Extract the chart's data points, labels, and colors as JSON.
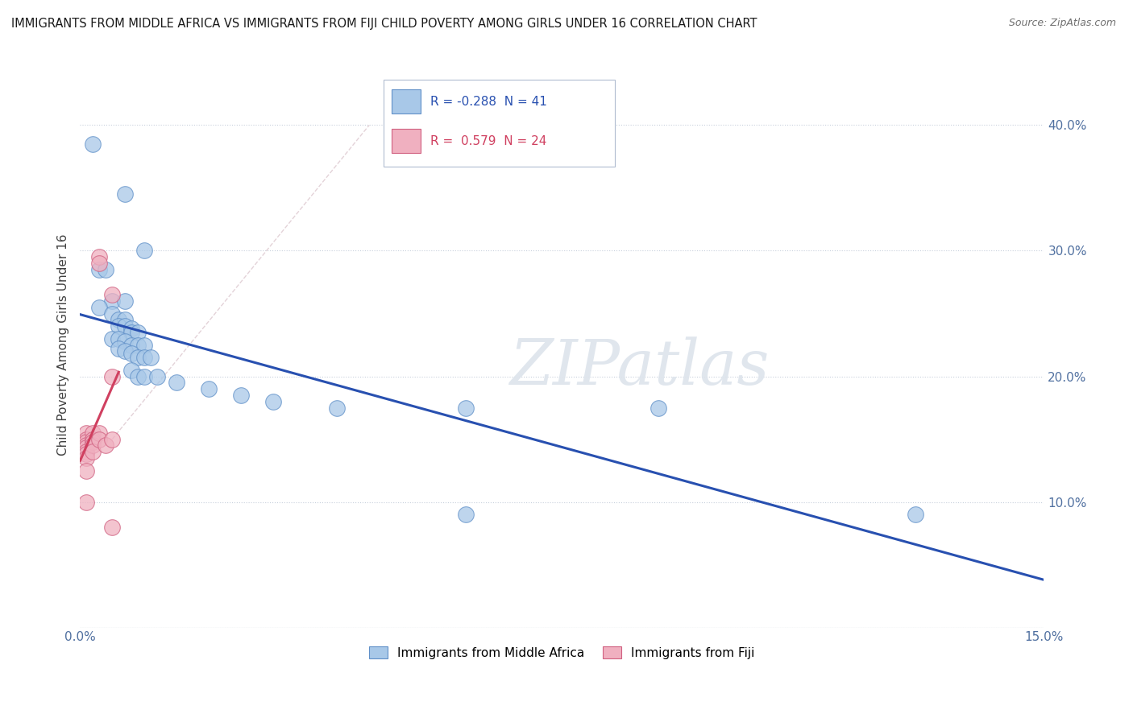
{
  "title": "IMMIGRANTS FROM MIDDLE AFRICA VS IMMIGRANTS FROM FIJI CHILD POVERTY AMONG GIRLS UNDER 16 CORRELATION CHART",
  "source": "Source: ZipAtlas.com",
  "ylabel": "Child Poverty Among Girls Under 16",
  "xlim": [
    0.0,
    0.15
  ],
  "ylim": [
    0.0,
    0.45
  ],
  "xticks": [
    0.0,
    0.025,
    0.05,
    0.075,
    0.1,
    0.125,
    0.15
  ],
  "xticklabels": [
    "0.0%",
    "",
    "",
    "",
    "",
    "",
    "15.0%"
  ],
  "yticks": [
    0.0,
    0.1,
    0.2,
    0.3,
    0.4
  ],
  "yticklabels_right": [
    "",
    "10.0%",
    "20.0%",
    "30.0%",
    "40.0%"
  ],
  "legend_blue_label": "Immigrants from Middle Africa",
  "legend_pink_label": "Immigrants from Fiji",
  "R_blue": "-0.288",
  "N_blue": "41",
  "R_pink": "0.579",
  "N_pink": "24",
  "blue_color": "#a8c8e8",
  "pink_color": "#f0b0c0",
  "blue_edge_color": "#6090c8",
  "pink_edge_color": "#d06080",
  "blue_line_color": "#2850b0",
  "pink_line_color": "#d04060",
  "watermark": "ZIPatlas",
  "blue_scatter": [
    [
      0.002,
      0.385
    ],
    [
      0.007,
      0.345
    ],
    [
      0.01,
      0.3
    ],
    [
      0.003,
      0.285
    ],
    [
      0.004,
      0.285
    ],
    [
      0.005,
      0.26
    ],
    [
      0.007,
      0.26
    ],
    [
      0.003,
      0.255
    ],
    [
      0.005,
      0.25
    ],
    [
      0.006,
      0.245
    ],
    [
      0.007,
      0.245
    ],
    [
      0.006,
      0.24
    ],
    [
      0.007,
      0.24
    ],
    [
      0.008,
      0.238
    ],
    [
      0.008,
      0.235
    ],
    [
      0.009,
      0.235
    ],
    [
      0.005,
      0.23
    ],
    [
      0.006,
      0.23
    ],
    [
      0.007,
      0.228
    ],
    [
      0.008,
      0.225
    ],
    [
      0.009,
      0.225
    ],
    [
      0.01,
      0.225
    ],
    [
      0.006,
      0.222
    ],
    [
      0.007,
      0.22
    ],
    [
      0.008,
      0.218
    ],
    [
      0.009,
      0.215
    ],
    [
      0.01,
      0.215
    ],
    [
      0.011,
      0.215
    ],
    [
      0.008,
      0.205
    ],
    [
      0.009,
      0.2
    ],
    [
      0.01,
      0.2
    ],
    [
      0.012,
      0.2
    ],
    [
      0.015,
      0.195
    ],
    [
      0.02,
      0.19
    ],
    [
      0.025,
      0.185
    ],
    [
      0.03,
      0.18
    ],
    [
      0.04,
      0.175
    ],
    [
      0.06,
      0.175
    ],
    [
      0.06,
      0.09
    ],
    [
      0.09,
      0.175
    ],
    [
      0.13,
      0.09
    ]
  ],
  "pink_scatter": [
    [
      0.001,
      0.155
    ],
    [
      0.001,
      0.15
    ],
    [
      0.001,
      0.148
    ],
    [
      0.001,
      0.145
    ],
    [
      0.001,
      0.143
    ],
    [
      0.001,
      0.14
    ],
    [
      0.001,
      0.138
    ],
    [
      0.001,
      0.135
    ],
    [
      0.001,
      0.1
    ],
    [
      0.002,
      0.155
    ],
    [
      0.002,
      0.15
    ],
    [
      0.002,
      0.148
    ],
    [
      0.002,
      0.145
    ],
    [
      0.002,
      0.14
    ],
    [
      0.003,
      0.295
    ],
    [
      0.003,
      0.29
    ],
    [
      0.003,
      0.155
    ],
    [
      0.003,
      0.15
    ],
    [
      0.004,
      0.145
    ],
    [
      0.005,
      0.265
    ],
    [
      0.005,
      0.2
    ],
    [
      0.005,
      0.15
    ],
    [
      0.005,
      0.08
    ],
    [
      0.001,
      0.125
    ]
  ]
}
